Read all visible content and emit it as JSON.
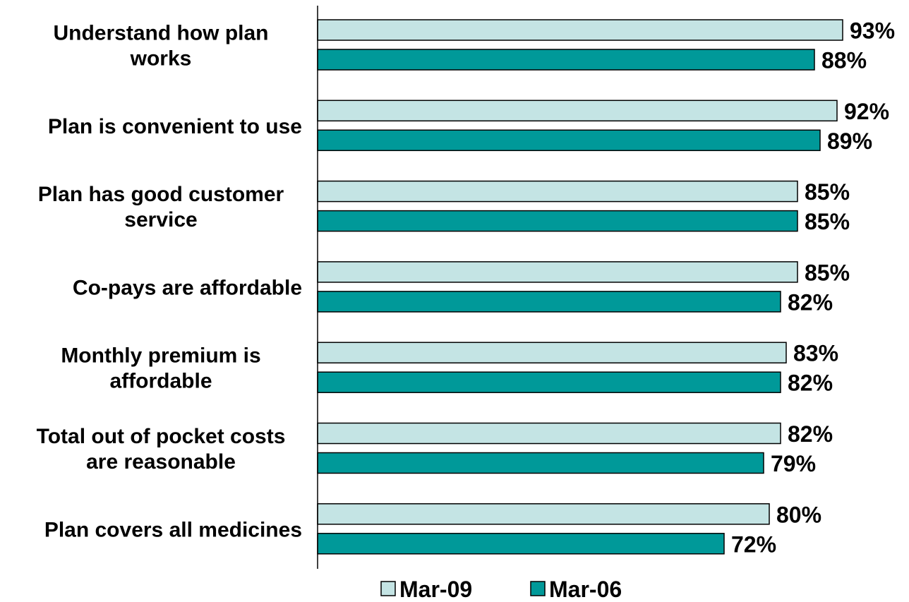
{
  "chart_data": {
    "type": "bar",
    "orientation": "horizontal",
    "categories": [
      [
        "Understand how plan",
        "works"
      ],
      [
        "Plan is convenient to use"
      ],
      [
        "Plan has good customer",
        "service"
      ],
      [
        "Co-pays are affordable"
      ],
      [
        "Monthly premium is",
        "affordable"
      ],
      [
        "Total out of pocket costs",
        "are reasonable"
      ],
      [
        "Plan covers all medicines"
      ]
    ],
    "series": [
      {
        "name": "Mar-09",
        "color": "#c4e4e4",
        "values": [
          93,
          92,
          85,
          85,
          83,
          82,
          80
        ],
        "labels": [
          "93%",
          "92%",
          "85%",
          "85%",
          "83%",
          "82%",
          "80%"
        ]
      },
      {
        "name": "Mar-06",
        "color": "#009999",
        "values": [
          88,
          89,
          85,
          82,
          82,
          79,
          72
        ],
        "labels": [
          "88%",
          "89%",
          "85%",
          "82%",
          "82%",
          "79%",
          "72%"
        ]
      }
    ],
    "xlim": [
      0,
      100
    ],
    "grid": false,
    "legend_position": "bottom"
  }
}
